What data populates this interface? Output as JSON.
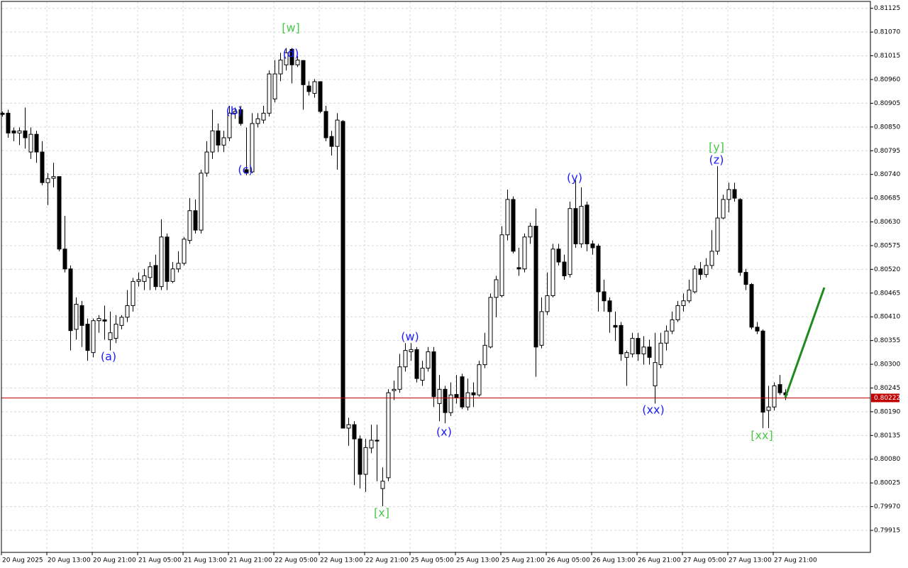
{
  "chart_data": {
    "type": "candlestick",
    "xtick_labels": [
      "20 Aug 2025",
      "20 Aug 13:00",
      "20 Aug 21:00",
      "21 Aug 05:00",
      "21 Aug 13:00",
      "21 Aug 21:00",
      "22 Aug 05:00",
      "22 Aug 13:00",
      "22 Aug 21:00",
      "25 Aug 05:00",
      "25 Aug 13:00",
      "25 Aug 21:00",
      "26 Aug 05:00",
      "26 Aug 13:00",
      "26 Aug 21:00",
      "27 Aug 05:00",
      "27 Aug 13:00",
      "27 Aug 21:00"
    ],
    "open": [
      0.80882,
      0.80882,
      0.80841,
      0.80836,
      0.80841,
      0.80792,
      0.80833,
      0.80792,
      0.80721,
      0.80731,
      0.80735,
      0.80567,
      0.80521,
      0.80381,
      0.80436,
      0.80393,
      0.80327,
      0.80401,
      0.80403,
      0.80357,
      0.8036,
      0.8039,
      0.80409,
      0.80436,
      0.80492,
      0.80492,
      0.80501,
      0.80529,
      0.8048,
      0.80595,
      0.80492,
      0.80521,
      0.80534,
      0.80587,
      0.80656,
      0.80611,
      0.80743,
      0.80792,
      0.80841,
      0.80808,
      0.80825,
      0.80882,
      0.8089,
      0.80751,
      0.80746,
      0.80858,
      0.80866,
      0.80882,
      0.80915,
      0.80973,
      0.80994,
      0.8103,
      0.80994,
      0.81004,
      0.80945,
      0.80928,
      0.80955,
      0.80886,
      0.80828,
      0.80805,
      0.80863,
      0.80152,
      0.8016,
      0.80127,
      0.80045,
      0.80106,
      0.80124,
      0.80012,
      0.80037,
      0.80239,
      0.80242,
      0.80294,
      0.80329,
      0.80334,
      0.80263,
      0.80291,
      0.80329,
      0.80209,
      0.80242,
      0.80188,
      0.8023,
      0.80271,
      0.80201,
      0.80234,
      0.80229,
      0.80299,
      0.8034,
      0.80455,
      0.80459,
      0.806,
      0.80682,
      0.80524,
      0.80521,
      0.80595,
      0.8062,
      0.80344,
      0.80422,
      0.80459,
      0.80567,
      0.80537,
      0.80508,
      0.80661,
      0.80579,
      0.80669,
      0.80579,
      0.80574,
      0.80468,
      0.80447,
      0.8039,
      0.8039,
      0.80316,
      0.80324,
      0.8036,
      0.80324,
      0.8034,
      0.8025,
      0.80299,
      0.80349,
      0.80377,
      0.80403,
      0.80436,
      0.80447,
      0.80468,
      0.80521,
      0.80508,
      0.80529,
      0.80562,
      0.80639,
      0.80682,
      0.80705,
      0.80682,
      0.80513,
      0.80485,
      0.80386,
      0.80377,
      0.80193,
      0.80201,
      0.80253,
      0.80234
    ],
    "high": [
      0.80886,
      0.8089,
      0.80849,
      0.80849,
      0.80895,
      0.80849,
      0.80841,
      0.80817,
      0.80743,
      0.80767,
      0.80735,
      0.80644,
      0.80529,
      0.80455,
      0.80447,
      0.80406,
      0.80406,
      0.80414,
      0.80436,
      0.80422,
      0.80414,
      0.80414,
      0.80472,
      0.805,
      0.80513,
      0.80521,
      0.80537,
      0.80554,
      0.80636,
      0.80603,
      0.80537,
      0.80562,
      0.80595,
      0.80685,
      0.80682,
      0.80751,
      0.80817,
      0.8089,
      0.80858,
      0.80841,
      0.80899,
      0.80895,
      0.80899,
      0.80849,
      0.80882,
      0.80882,
      0.80899,
      0.80981,
      0.81005,
      0.81022,
      0.81033,
      0.81033,
      0.81014,
      0.81005,
      0.80956,
      0.80961,
      0.80956,
      0.80899,
      0.80841,
      0.80882,
      0.80866,
      0.80176,
      0.80168,
      0.80135,
      0.80127,
      0.8016,
      0.8016,
      0.80061,
      0.80242,
      0.80262,
      0.80324,
      0.80349,
      0.80349,
      0.8034,
      0.80308,
      0.8034,
      0.8034,
      0.80275,
      0.8025,
      0.80258,
      0.80275,
      0.80278,
      0.80267,
      0.80258,
      0.80308,
      0.80373,
      0.80464,
      0.80505,
      0.8062,
      0.80705,
      0.80689,
      0.8057,
      0.80603,
      0.80628,
      0.80661,
      0.80455,
      0.80513,
      0.80579,
      0.80579,
      0.80554,
      0.80677,
      0.80726,
      0.8071,
      0.80677,
      0.80587,
      0.80579,
      0.80496,
      0.80455,
      0.80422,
      0.80398,
      0.80332,
      0.80373,
      0.80373,
      0.80365,
      0.80357,
      0.80373,
      0.80373,
      0.8039,
      0.80422,
      0.80447,
      0.80464,
      0.80496,
      0.80529,
      0.80537,
      0.80546,
      0.80611,
      0.80759,
      0.80693,
      0.80721,
      0.80721,
      0.80685,
      0.80521,
      0.80488,
      0.80398,
      0.80381,
      0.8025,
      0.80258,
      0.80275,
      0.80242
    ],
    "low": [
      0.80874,
      0.80825,
      0.80817,
      0.80808,
      0.808,
      0.80776,
      0.80767,
      0.80715,
      0.80669,
      0.8071,
      0.80562,
      0.80513,
      0.80332,
      0.80357,
      0.8034,
      0.80308,
      0.80316,
      0.80373,
      0.80357,
      0.80332,
      0.80349,
      0.80381,
      0.80398,
      0.80422,
      0.8048,
      0.80472,
      0.80472,
      0.80472,
      0.80472,
      0.80472,
      0.80488,
      0.80513,
      0.80529,
      0.80579,
      0.80603,
      0.80603,
      0.80735,
      0.80776,
      0.80792,
      0.80792,
      0.80817,
      0.80869,
      0.80853,
      0.80738,
      0.80743,
      0.80849,
      0.80858,
      0.80874,
      0.80907,
      0.80956,
      0.80981,
      0.80951,
      0.80989,
      0.8089,
      0.80923,
      0.80918,
      0.80882,
      0.80817,
      0.80784,
      0.80751,
      0.80152,
      0.80111,
      0.8002,
      0.80012,
      0.80004,
      0.80094,
      0.80029,
      0.79971,
      0.80029,
      0.80217,
      0.80234,
      0.80283,
      0.80308,
      0.80258,
      0.8025,
      0.80283,
      0.80201,
      0.80168,
      0.80163,
      0.8018,
      0.80209,
      0.80196,
      0.80193,
      0.80201,
      0.80225,
      0.80291,
      0.80337,
      0.80409,
      0.80455,
      0.80587,
      0.80557,
      0.80505,
      0.80513,
      0.80579,
      0.80271,
      0.80337,
      0.80414,
      0.80455,
      0.80529,
      0.80496,
      0.80501,
      0.8057,
      0.8057,
      0.80562,
      0.80554,
      0.80422,
      0.80422,
      0.80373,
      0.80354,
      0.80308,
      0.8025,
      0.80316,
      0.80308,
      0.80299,
      0.80299,
      0.80209,
      0.80291,
      0.80332,
      0.8037,
      0.80398,
      0.80422,
      0.80442,
      0.80464,
      0.80496,
      0.80501,
      0.80521,
      0.80554,
      0.80636,
      0.80652,
      0.80677,
      0.80505,
      0.80472,
      0.80381,
      0.8037,
      0.80152,
      0.80152,
      0.80193,
      0.80229,
      0.80217
    ],
    "close": [
      0.80879,
      0.80836,
      0.80836,
      0.80841,
      0.80825,
      0.80833,
      0.80792,
      0.80721,
      0.8073,
      0.80735,
      0.80567,
      0.80521,
      0.80378,
      0.80439,
      0.8039,
      0.80332,
      0.80401,
      0.80406,
      0.804,
      0.80373,
      0.80393,
      0.80409,
      0.80436,
      0.80492,
      0.80496,
      0.80505,
      0.80526,
      0.8048,
      0.80595,
      0.80492,
      0.80521,
      0.80534,
      0.8059,
      0.80656,
      0.80611,
      0.80743,
      0.80792,
      0.80841,
      0.80808,
      0.80825,
      0.80882,
      0.80886,
      0.80858,
      0.80743,
      0.80858,
      0.80869,
      0.80882,
      0.80973,
      0.80973,
      0.81005,
      0.81022,
      0.80994,
      0.81005,
      0.80948,
      0.80932,
      0.80955,
      0.80886,
      0.80825,
      0.80805,
      0.80866,
      0.80152,
      0.8016,
      0.80127,
      0.80045,
      0.80107,
      0.80124,
      0.80122,
      0.80029,
      0.80234,
      0.80242,
      0.80294,
      0.80332,
      0.80334,
      0.80267,
      0.80291,
      0.80329,
      0.80225,
      0.80242,
      0.80188,
      0.80229,
      0.80222,
      0.80201,
      0.80234,
      0.80229,
      0.80299,
      0.80344,
      0.80455,
      0.80496,
      0.806,
      0.80682,
      0.80562,
      0.80521,
      0.80595,
      0.8062,
      0.8034,
      0.80422,
      0.80459,
      0.80567,
      0.80537,
      0.80505,
      0.80661,
      0.80579,
      0.80666,
      0.80579,
      0.8057,
      0.80468,
      0.80447,
      0.80422,
      0.80386,
      0.80324,
      0.80327,
      0.8036,
      0.80324,
      0.8034,
      0.80316,
      0.80304,
      0.80349,
      0.80377,
      0.80403,
      0.80436,
      0.80447,
      0.80472,
      0.80521,
      0.80508,
      0.80529,
      0.80562,
      0.80639,
      0.80682,
      0.80705,
      0.80685,
      0.80513,
      0.80485,
      0.80386,
      0.80377,
      0.80189,
      0.80201,
      0.8025,
      0.80234,
      0.80229
    ],
    "ylim": [
      0.79864,
      0.81141
    ],
    "yticks": [
      0.81125,
      {
        "value": 0.8107,
        "label": "0.81070"
      },
      0.81015,
      {
        "value": 0.8096,
        "label": "0.80960"
      },
      0.80905,
      {
        "value": 0.8085,
        "label": "0.80850"
      },
      0.80795,
      {
        "value": 0.8074,
        "label": "0.80740"
      },
      0.80685,
      {
        "value": 0.8063,
        "label": "0.80630"
      },
      0.80575,
      {
        "value": 0.8052,
        "label": "0.80520"
      },
      0.80465,
      {
        "value": 0.8041,
        "label": "0.80410"
      },
      0.80355,
      {
        "value": 0.803,
        "label": "0.80300"
      },
      0.80245,
      {
        "value": 0.8019,
        "label": "0.80190"
      },
      0.80135,
      {
        "value": 0.8008,
        "label": "0.80080"
      },
      0.80025,
      {
        "value": 0.7997,
        "label": "0.79970"
      },
      0.79915
    ],
    "current_price": 0.80222,
    "current_price_color": "#c00000",
    "up_color": "#ffffff",
    "down_color": "#000000",
    "grid": true,
    "annotations": [
      {
        "text": "[w]",
        "color": "#4cc84c"
      },
      {
        "text": "(d)",
        "color": "#1c1cff"
      },
      {
        "text": "(b)",
        "color": "#1c1cff"
      },
      {
        "text": "(c)",
        "color": "#1c1cff"
      },
      {
        "text": "(a)",
        "color": "#1c1cff"
      },
      {
        "text": "[x]",
        "color": "#4cc84c"
      },
      {
        "text": "(w)",
        "color": "#1c1cff"
      },
      {
        "text": "(x)",
        "color": "#1c1cff"
      },
      {
        "text": "(y)",
        "color": "#1c1cff"
      },
      {
        "text": "(xx)",
        "color": "#1c1cff"
      },
      {
        "text": "[y]",
        "color": "#4cc84c"
      },
      {
        "text": "(z)",
        "color": "#1c1cff"
      },
      {
        "text": "[xx]",
        "color": "#4cc84c"
      }
    ]
  }
}
